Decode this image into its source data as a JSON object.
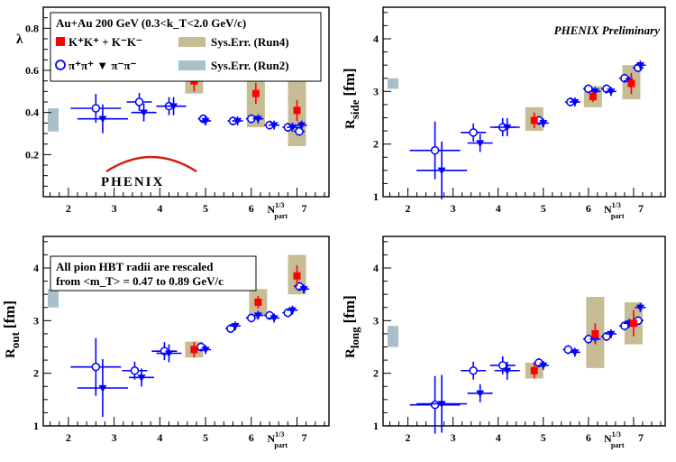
{
  "chart_data": [
    {
      "type": "scatter",
      "panel": "lambda",
      "ylabel": "λ",
      "xlabel": "N_part^1/3",
      "xlim": [
        1.45,
        7.7
      ],
      "ylim": [
        0.0,
        0.9
      ],
      "yticks": [
        0.2,
        0.4,
        0.6,
        0.8
      ],
      "xticks": [
        2,
        3,
        4,
        5,
        6,
        7
      ],
      "legend": {
        "title": "Au+Au 200 GeV (0.3<k_T<2.0 GeV/c)",
        "kaons": "K⁺K⁺ + K⁻K⁻",
        "pions": "π⁺π⁺ ▼ π⁻π⁻",
        "sys_run4": "Sys.Err. (Run4)",
        "sys_run2": "Sys.Err. (Run2)"
      },
      "logo": "PHENIX",
      "series": [
        {
          "name": "K⁺K⁺ + K⁻K⁻",
          "color": "#ff0000",
          "marker": "square",
          "points": [
            {
              "x": 4.75,
              "y": 0.55,
              "err": 0.05
            },
            {
              "x": 6.1,
              "y": 0.49,
              "err": 0.05
            },
            {
              "x": 7.0,
              "y": 0.41,
              "err": 0.05
            }
          ],
          "sys": [
            {
              "x": 4.75,
              "lo": 0.49,
              "hi": 0.62
            },
            {
              "x": 6.1,
              "lo": 0.33,
              "hi": 0.65
            },
            {
              "x": 7.0,
              "lo": 0.24,
              "hi": 0.58
            }
          ]
        },
        {
          "name": "π⁺π⁺",
          "color": "#0000ff",
          "marker": "open-circle",
          "points": [
            {
              "x": 2.6,
              "y": 0.42
            },
            {
              "x": 3.55,
              "y": 0.45
            },
            {
              "x": 4.2,
              "y": 0.43
            },
            {
              "x": 4.95,
              "y": 0.37
            },
            {
              "x": 5.6,
              "y": 0.36
            },
            {
              "x": 6.0,
              "y": 0.37
            },
            {
              "x": 6.4,
              "y": 0.34
            },
            {
              "x": 6.8,
              "y": 0.33
            },
            {
              "x": 7.05,
              "y": 0.31
            }
          ]
        },
        {
          "name": "π⁻π⁻",
          "color": "#0000ff",
          "marker": "filled-triangle-down",
          "points": [
            {
              "x": 2.75,
              "y": 0.37
            },
            {
              "x": 3.65,
              "y": 0.4
            },
            {
              "x": 4.3,
              "y": 0.43
            },
            {
              "x": 5.0,
              "y": 0.36
            },
            {
              "x": 5.7,
              "y": 0.36
            },
            {
              "x": 6.15,
              "y": 0.37
            },
            {
              "x": 6.5,
              "y": 0.34
            },
            {
              "x": 6.9,
              "y": 0.33
            },
            {
              "x": 7.1,
              "y": 0.34
            }
          ]
        }
      ],
      "run2_band": {
        "lo": 0.31,
        "hi": 0.42
      }
    },
    {
      "type": "scatter",
      "panel": "rside",
      "ylabel": "R_side [fm]",
      "xlabel": "N_part^1/3",
      "annotation": "PHENIX Preliminary",
      "xlim": [
        1.45,
        7.7
      ],
      "ylim": [
        1.0,
        4.6
      ],
      "yticks": [
        1,
        2,
        3,
        4
      ],
      "xticks": [
        2,
        3,
        4,
        5,
        6,
        7
      ],
      "series": [
        {
          "name": "K⁺K⁺ + K⁻K⁻",
          "color": "#ff0000",
          "marker": "square",
          "points": [
            {
              "x": 4.8,
              "y": 2.45,
              "err": 0.15
            },
            {
              "x": 6.1,
              "y": 2.9,
              "err": 0.1
            },
            {
              "x": 6.95,
              "y": 3.15,
              "err": 0.2
            }
          ],
          "sys": [
            {
              "x": 4.8,
              "lo": 2.25,
              "hi": 2.7
            },
            {
              "x": 6.1,
              "lo": 2.7,
              "hi": 3.1
            },
            {
              "x": 6.95,
              "lo": 2.85,
              "hi": 3.5
            }
          ]
        },
        {
          "name": "π⁺π⁺",
          "color": "#0000ff",
          "marker": "open-circle",
          "points": [
            {
              "x": 2.6,
              "y": 1.88
            },
            {
              "x": 3.45,
              "y": 2.22
            },
            {
              "x": 4.1,
              "y": 2.32
            },
            {
              "x": 4.9,
              "y": 2.45
            },
            {
              "x": 5.6,
              "y": 2.8
            },
            {
              "x": 6.0,
              "y": 3.05
            },
            {
              "x": 6.4,
              "y": 3.05
            },
            {
              "x": 6.8,
              "y": 3.25
            },
            {
              "x": 7.1,
              "y": 3.45
            }
          ]
        },
        {
          "name": "π⁻π⁻",
          "color": "#0000ff",
          "marker": "filled-triangle-down",
          "points": [
            {
              "x": 2.75,
              "y": 1.5
            },
            {
              "x": 3.6,
              "y": 2.02
            },
            {
              "x": 4.2,
              "y": 2.32
            },
            {
              "x": 5.0,
              "y": 2.4
            },
            {
              "x": 5.7,
              "y": 2.8
            },
            {
              "x": 6.15,
              "y": 3.0
            },
            {
              "x": 6.5,
              "y": 3.0
            },
            {
              "x": 6.9,
              "y": 3.2
            },
            {
              "x": 7.15,
              "y": 3.5
            }
          ]
        }
      ],
      "run2_band": {
        "lo": 3.05,
        "hi": 3.25
      }
    },
    {
      "type": "scatter",
      "panel": "rout",
      "ylabel": "R_out [fm]",
      "xlabel": "N_part^1/3",
      "annotation": "All pion HBT radii are rescaled from <m_T> = 0.47 to 0.89 GeV/c",
      "annotation_lines": [
        "All pion HBT radii are rescaled",
        "from <m_T> = 0.47 to 0.89 GeV/c"
      ],
      "xlim": [
        1.45,
        7.7
      ],
      "ylim": [
        1.0,
        4.6
      ],
      "yticks": [
        1,
        2,
        3,
        4
      ],
      "xticks": [
        2,
        3,
        4,
        5,
        6,
        7
      ],
      "series": [
        {
          "name": "K⁺K⁺ + K⁻K⁻",
          "color": "#ff0000",
          "marker": "square",
          "points": [
            {
              "x": 4.75,
              "y": 2.45,
              "err": 0.15
            },
            {
              "x": 6.15,
              "y": 3.35,
              "err": 0.12
            },
            {
              "x": 7.0,
              "y": 3.85,
              "err": 0.2
            }
          ],
          "sys": [
            {
              "x": 4.75,
              "lo": 2.3,
              "hi": 2.6
            },
            {
              "x": 6.15,
              "lo": 3.1,
              "hi": 3.6
            },
            {
              "x": 7.0,
              "lo": 3.5,
              "hi": 4.25
            }
          ]
        },
        {
          "name": "π⁺π⁺",
          "color": "#0000ff",
          "marker": "open-circle",
          "points": [
            {
              "x": 2.6,
              "y": 2.12
            },
            {
              "x": 3.45,
              "y": 2.05
            },
            {
              "x": 4.1,
              "y": 2.42
            },
            {
              "x": 4.9,
              "y": 2.5
            },
            {
              "x": 5.55,
              "y": 2.85
            },
            {
              "x": 6.0,
              "y": 3.05
            },
            {
              "x": 6.4,
              "y": 3.1
            },
            {
              "x": 6.8,
              "y": 3.15
            },
            {
              "x": 7.05,
              "y": 3.65
            }
          ]
        },
        {
          "name": "π⁻π⁻",
          "color": "#0000ff",
          "marker": "filled-triangle-down",
          "points": [
            {
              "x": 2.75,
              "y": 1.72
            },
            {
              "x": 3.6,
              "y": 1.92
            },
            {
              "x": 4.2,
              "y": 2.38
            },
            {
              "x": 5.0,
              "y": 2.45
            },
            {
              "x": 5.65,
              "y": 2.9
            },
            {
              "x": 6.15,
              "y": 3.1
            },
            {
              "x": 6.5,
              "y": 3.05
            },
            {
              "x": 6.9,
              "y": 3.2
            },
            {
              "x": 7.15,
              "y": 3.6
            }
          ]
        }
      ],
      "run2_band": {
        "lo": 3.25,
        "hi": 3.6
      }
    },
    {
      "type": "scatter",
      "panel": "rlong",
      "ylabel": "R_long [fm]",
      "xlabel": "N_part^1/3",
      "xlim": [
        1.45,
        7.7
      ],
      "ylim": [
        1.0,
        4.6
      ],
      "yticks": [
        1,
        2,
        3,
        4
      ],
      "xticks": [
        2,
        3,
        4,
        5,
        6,
        7
      ],
      "series": [
        {
          "name": "K⁺K⁺ + K⁻K⁻",
          "color": "#ff0000",
          "marker": "square",
          "points": [
            {
              "x": 4.8,
              "y": 2.05,
              "err": 0.15
            },
            {
              "x": 6.15,
              "y": 2.75,
              "err": 0.2
            },
            {
              "x": 7.0,
              "y": 2.95,
              "err": 0.25
            }
          ],
          "sys": [
            {
              "x": 4.8,
              "lo": 1.9,
              "hi": 2.2
            },
            {
              "x": 6.15,
              "lo": 2.1,
              "hi": 3.45
            },
            {
              "x": 7.0,
              "lo": 2.55,
              "hi": 3.35
            }
          ]
        },
        {
          "name": "π⁺π⁺",
          "color": "#0000ff",
          "marker": "open-circle",
          "points": [
            {
              "x": 2.6,
              "y": 1.4
            },
            {
              "x": 3.45,
              "y": 2.05
            },
            {
              "x": 4.1,
              "y": 2.15
            },
            {
              "x": 4.9,
              "y": 2.2
            },
            {
              "x": 5.55,
              "y": 2.45
            },
            {
              "x": 6.0,
              "y": 2.65
            },
            {
              "x": 6.4,
              "y": 2.7
            },
            {
              "x": 6.8,
              "y": 2.9
            },
            {
              "x": 7.1,
              "y": 3.0
            }
          ]
        },
        {
          "name": "π⁻π⁻",
          "color": "#0000ff",
          "marker": "filled-triangle-down",
          "points": [
            {
              "x": 2.75,
              "y": 1.42
            },
            {
              "x": 3.6,
              "y": 1.62
            },
            {
              "x": 4.2,
              "y": 2.05
            },
            {
              "x": 5.0,
              "y": 2.15
            },
            {
              "x": 5.7,
              "y": 2.4
            },
            {
              "x": 6.15,
              "y": 2.65
            },
            {
              "x": 6.5,
              "y": 2.75
            },
            {
              "x": 6.9,
              "y": 2.95
            },
            {
              "x": 7.15,
              "y": 3.25
            }
          ]
        }
      ],
      "run2_band": {
        "lo": 2.5,
        "hi": 2.9
      }
    }
  ]
}
